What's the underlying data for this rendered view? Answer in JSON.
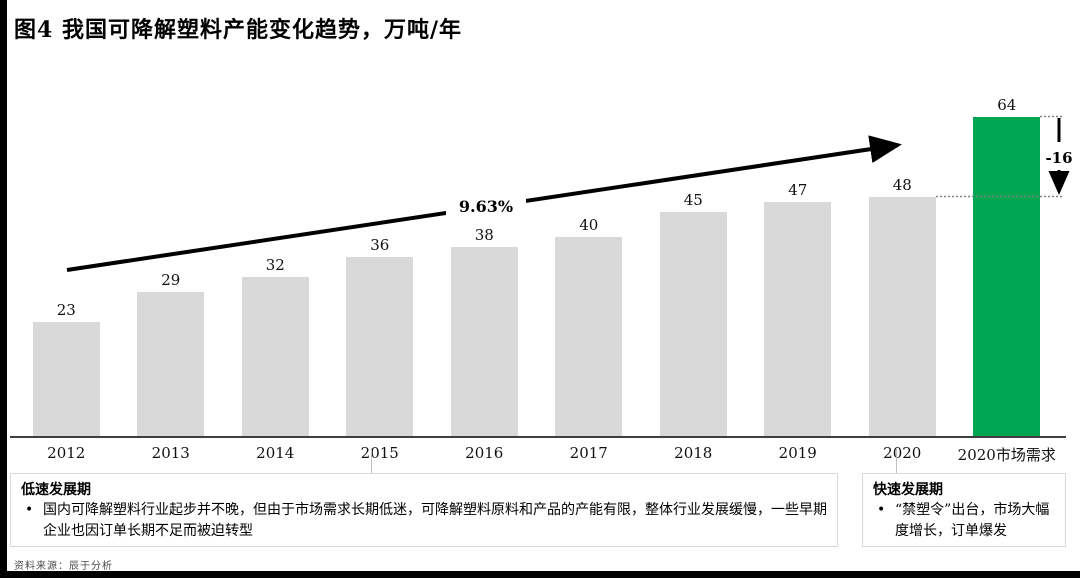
{
  "page": {
    "title": "图4 我国可降解塑料产能变化趋势，万吨/年",
    "source": "资料来源：辰于分析"
  },
  "chart_data": {
    "type": "bar",
    "title": "图4 我国可降解塑料产能变化趋势，万吨/年",
    "unit_label": "万吨/年",
    "categories": [
      "2012",
      "2013",
      "2014",
      "2015",
      "2016",
      "2017",
      "2018",
      "2019",
      "2020",
      "2020市场需求"
    ],
    "values": [
      23,
      29,
      32,
      36,
      38,
      40,
      45,
      47,
      48,
      64
    ],
    "ylim": [
      0,
      64
    ],
    "grid": false,
    "legend": "none",
    "bar_colors": {
      "default": "#D9D9D9",
      "highlight": "#00A651",
      "highlight_index": 9
    },
    "annotations": {
      "cagr_label": "9.63%",
      "gap_label": "-16",
      "gap_top_value": 64,
      "gap_bottom_value": 48
    }
  },
  "phases": {
    "slow": {
      "title": "低速发展期",
      "bullet_marker": "•",
      "bullet": "国内可降解塑料行业起步并不晚，但由于市场需求长期低迷，可降解塑料原料和产品的产能有限，整体行业发展缓慢，一些早期企业也因订单长期不足而被迫转型"
    },
    "fast": {
      "title": "快速发展期",
      "bullet_marker": "•",
      "bullet": "“禁塑令”出台，市场大幅度增长，订单爆发"
    }
  },
  "colors": {
    "bar_gray": "#D9D9D9",
    "bar_green": "#00A651",
    "axis": "#3f3f3f",
    "dotted": "#808080",
    "box_border": "#d9d9d9"
  }
}
